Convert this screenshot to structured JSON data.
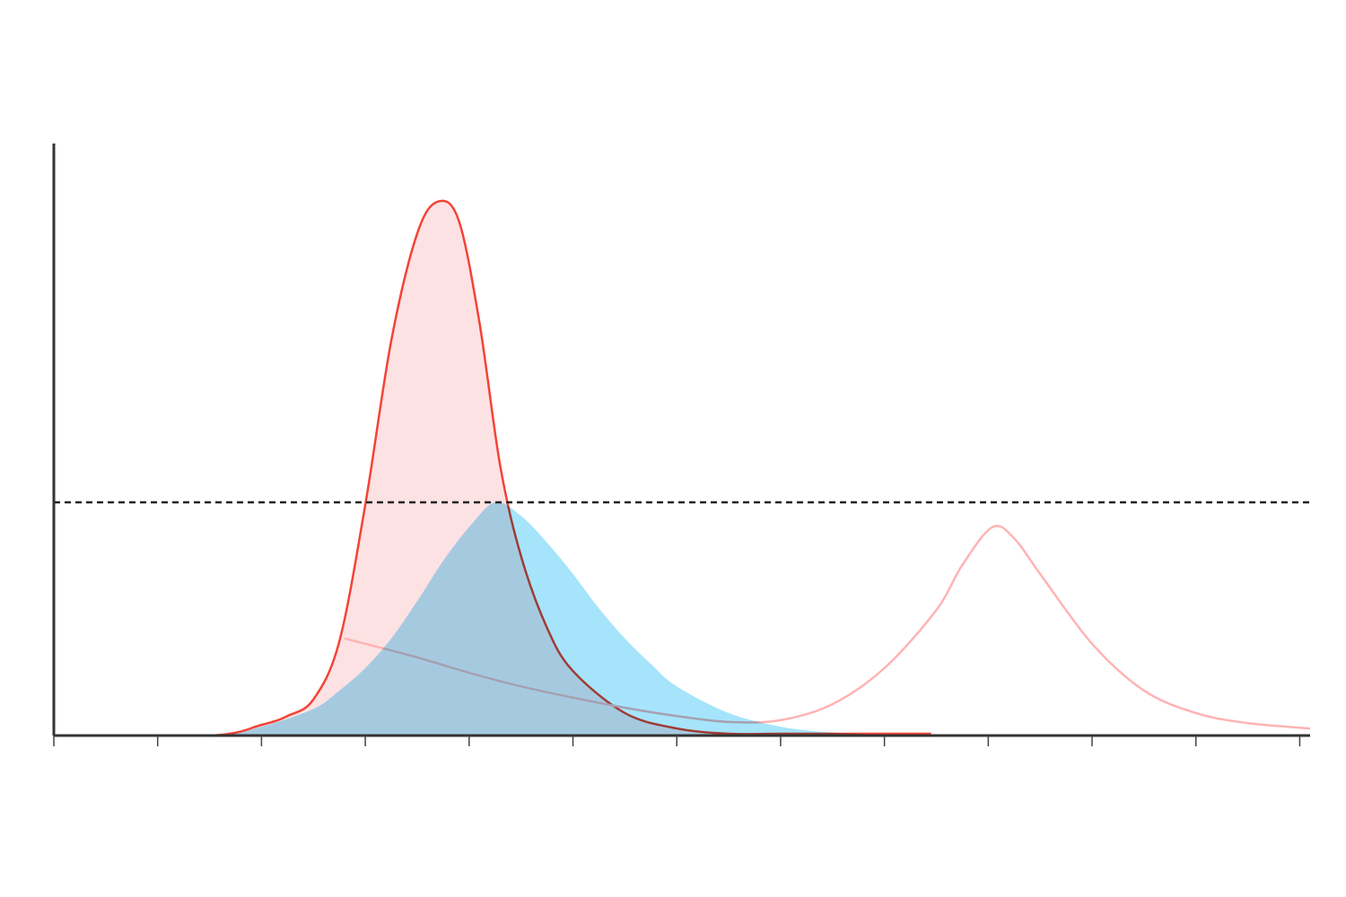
{
  "chart_data": {
    "type": "area",
    "xlim": [
      0,
      12.1
    ],
    "ylim": [
      0,
      100
    ],
    "xticks": [
      0,
      1,
      2,
      3,
      4,
      5,
      6,
      7,
      8,
      9,
      10,
      11,
      12
    ],
    "threshold": 39.4,
    "series": [
      {
        "color": "#f44336",
        "fill": "#fde2e4",
        "filled": true,
        "x": [
          0,
          1.5,
          2,
          2.25,
          2.5,
          2.75,
          3,
          3.25,
          3.5,
          3.7,
          3.9,
          4.1,
          4.3,
          4.5,
          4.75,
          5,
          5.5,
          6,
          6.5,
          7,
          8.45
        ],
        "values": [
          0,
          0,
          1.8,
          3.3,
          6.1,
          15.9,
          39,
          66.7,
          84.8,
          90.2,
          87,
          69.7,
          45.5,
          30.3,
          18.2,
          10.9,
          3.8,
          1.2,
          0.3,
          0.3,
          0.3
        ]
      },
      {
        "color": "#ffb3b3",
        "filled": false,
        "x": [
          2.8,
          3,
          3.5,
          4,
          4.5,
          5,
          5.5,
          6,
          6.5,
          7,
          7.5,
          8,
          8.5,
          8.75,
          9.04,
          9.25,
          9.5,
          10,
          10.5,
          11,
          11.5,
          12.1
        ],
        "values": [
          16.4,
          15.5,
          13.2,
          10.6,
          8.3,
          6.4,
          4.7,
          3.3,
          2.3,
          2.6,
          5.3,
          11.4,
          21.2,
          28.8,
          35.2,
          33.3,
          27.3,
          15.5,
          7.6,
          3.8,
          2.1,
          1.2
        ]
      },
      {
        "color": "#a6e4fb",
        "fill": "#a6e4fb",
        "filled": true,
        "blend": "multiply",
        "x": [
          0,
          1.5,
          2,
          2.5,
          2.75,
          3,
          3.25,
          3.5,
          3.75,
          4,
          4.25,
          4.5,
          4.75,
          5,
          5.25,
          5.5,
          5.75,
          6,
          6.5,
          7,
          7.5,
          8,
          8.45
        ],
        "values": [
          0,
          0,
          1.5,
          4.5,
          7.6,
          11.4,
          16.4,
          22.7,
          29.5,
          35.2,
          39.4,
          37.1,
          32.6,
          27.3,
          21.5,
          16.4,
          12.1,
          8.3,
          3.8,
          1.5,
          0.5,
          0.2,
          0.2
        ]
      }
    ]
  }
}
